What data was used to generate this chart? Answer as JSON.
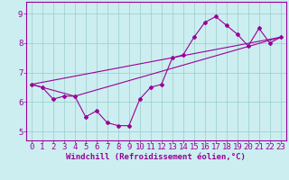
{
  "xlabel": "Windchill (Refroidissement éolien,°C)",
  "background_color": "#cceef0",
  "line_color": "#990099",
  "xlim": [
    -0.5,
    23.5
  ],
  "ylim": [
    4.7,
    9.4
  ],
  "yticks": [
    5,
    6,
    7,
    8,
    9
  ],
  "xticks": [
    0,
    1,
    2,
    3,
    4,
    5,
    6,
    7,
    8,
    9,
    10,
    11,
    12,
    13,
    14,
    15,
    16,
    17,
    18,
    19,
    20,
    21,
    22,
    23
  ],
  "series1_x": [
    0,
    1,
    2,
    3,
    4,
    5,
    6,
    7,
    8,
    9,
    10,
    11,
    12,
    13,
    14,
    15,
    16,
    17,
    18,
    19,
    20,
    21,
    22,
    23
  ],
  "series1_y": [
    6.6,
    6.5,
    6.1,
    6.2,
    6.2,
    5.5,
    5.7,
    5.3,
    5.2,
    5.2,
    6.1,
    6.5,
    6.6,
    7.5,
    7.6,
    8.2,
    8.7,
    8.9,
    8.6,
    8.3,
    7.9,
    8.5,
    8.0,
    8.2
  ],
  "series2_x": [
    0,
    23
  ],
  "series2_y": [
    6.6,
    8.2
  ],
  "series3_x": [
    0,
    4,
    23
  ],
  "series3_y": [
    6.6,
    6.2,
    8.2
  ],
  "grid_color": "#99cccc",
  "xlabel_fontsize": 6.5,
  "tick_fontsize": 6.5
}
